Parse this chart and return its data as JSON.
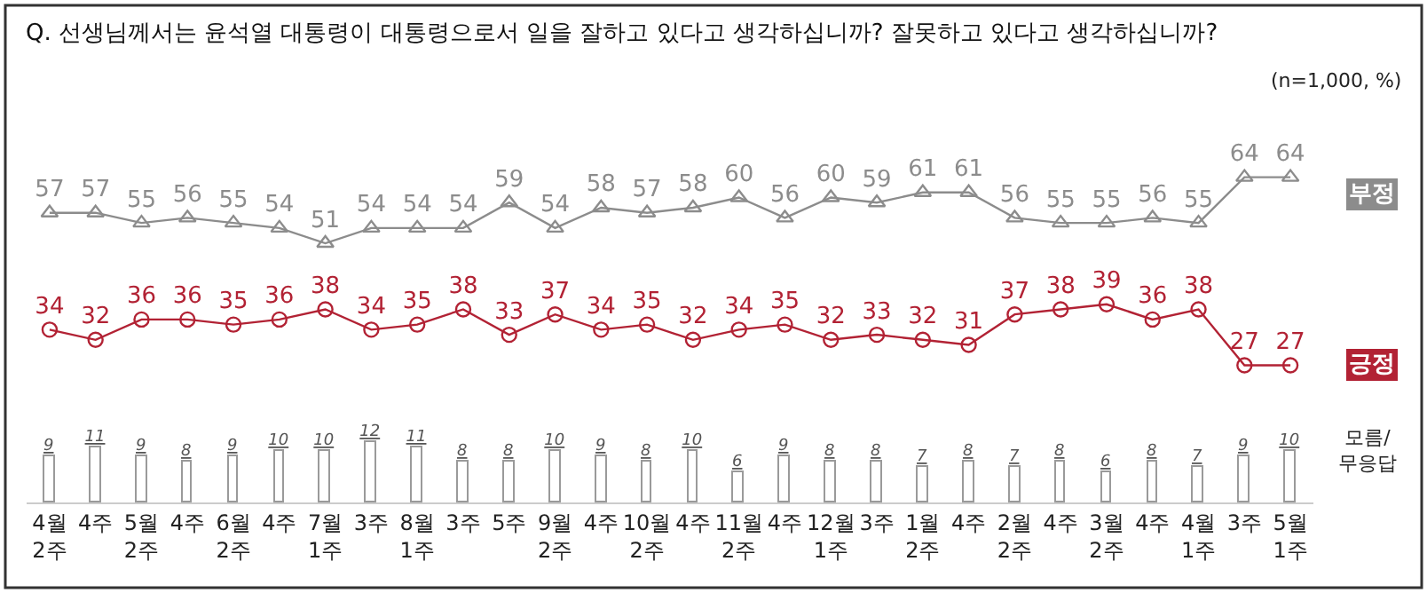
{
  "chart_data": {
    "type": "line",
    "title": "Q. 선생님께서는 윤석열 대통령이 대통령으로서 일을 잘하고 있다고 생각하십니까? 잘못하고 있다고 생각하십니까?",
    "annotations": [
      "(n=1,000, %)"
    ],
    "categories": [
      "4월\n2주",
      "4주",
      "5월\n2주",
      "4주",
      "6월\n2주",
      "4주",
      "7월\n1주",
      "3주",
      "8월\n1주",
      "3주",
      "5주",
      "9월\n2주",
      "4주",
      "10월\n2주",
      "4주",
      "11월\n2주",
      "4주",
      "12월\n1주",
      "3주",
      "1월\n2주",
      "4주",
      "2월\n2주",
      "4주",
      "3월\n2주",
      "4주",
      "4월\n1주",
      "3주",
      "5월\n1주"
    ],
    "data_labels": true,
    "tick_labels": "x",
    "series": [
      {
        "name": "부정",
        "marker": "triangle",
        "color": "#8c8c8c",
        "values": [
          57,
          57,
          55,
          56,
          55,
          54,
          51,
          54,
          54,
          54,
          59,
          54,
          58,
          57,
          58,
          60,
          56,
          60,
          59,
          61,
          61,
          56,
          55,
          55,
          56,
          55,
          64,
          64
        ]
      },
      {
        "name": "긍정",
        "marker": "circle",
        "color": "#b22234",
        "values": [
          34,
          32,
          36,
          36,
          35,
          36,
          38,
          34,
          35,
          38,
          33,
          37,
          34,
          35,
          32,
          34,
          35,
          32,
          33,
          32,
          31,
          37,
          38,
          39,
          36,
          38,
          27,
          27
        ]
      },
      {
        "name": "모름/\n무응답",
        "type": "bar",
        "color": "#ffffff",
        "values": [
          9,
          11,
          9,
          8,
          9,
          10,
          10,
          12,
          11,
          8,
          8,
          10,
          9,
          8,
          10,
          6,
          9,
          8,
          8,
          7,
          8,
          7,
          8,
          6,
          8,
          7,
          9,
          10
        ]
      }
    ]
  }
}
